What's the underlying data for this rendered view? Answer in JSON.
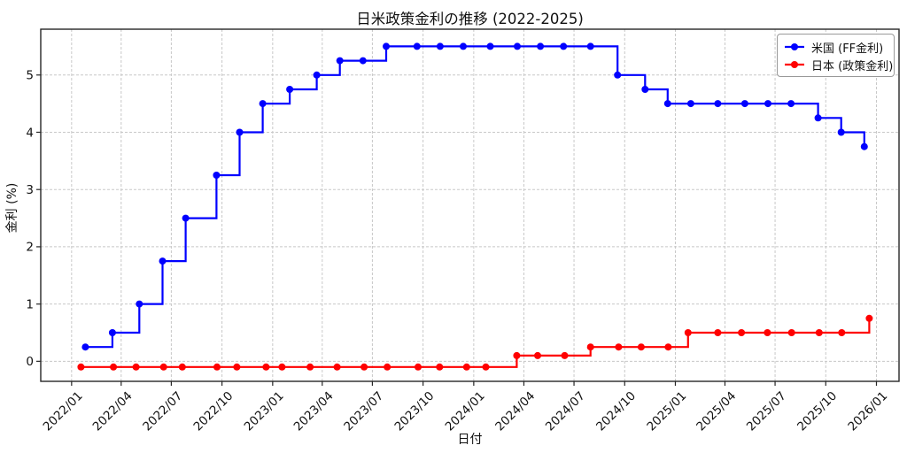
{
  "figure_title": "日米政策金利の推移 (2022-2025)",
  "chart_data": {
    "type": "line",
    "step": "post",
    "title": "日米政策金利の推移 (2022-2025)",
    "xlabel": "日付",
    "ylabel": "金利 (%)",
    "grid": true,
    "grid_style": "dashed",
    "legend_position": "upper right",
    "background_color": "#ffffff",
    "grid_color": "#c8c8c8",
    "spine_color": "#262626",
    "x_domain": [
      "2021-11-06",
      "2026-02-11"
    ],
    "ylim": [
      -0.35,
      5.8
    ],
    "y_ticks": [
      0,
      1,
      2,
      3,
      4,
      5
    ],
    "x_ticks": [
      "2022/01",
      "2022/04",
      "2022/07",
      "2022/10",
      "2023/01",
      "2023/04",
      "2023/07",
      "2023/10",
      "2024/01",
      "2024/04",
      "2024/07",
      "2024/10",
      "2025/01",
      "2025/04",
      "2025/07",
      "2025/10",
      "2026/01"
    ],
    "series": [
      {
        "id": "us",
        "name": "米国 (FF金利)",
        "color": "#0000ff",
        "x": [
          "2022-01-26",
          "2022-03-16",
          "2022-05-04",
          "2022-06-15",
          "2022-07-27",
          "2022-09-21",
          "2022-11-02",
          "2022-12-14",
          "2023-02-01",
          "2023-03-22",
          "2023-05-03",
          "2023-06-14",
          "2023-07-26",
          "2023-09-20",
          "2023-11-01",
          "2023-12-13",
          "2024-01-31",
          "2024-03-20",
          "2024-05-01",
          "2024-06-12",
          "2024-07-31",
          "2024-09-18",
          "2024-11-07",
          "2024-12-18",
          "2025-01-29",
          "2025-03-19",
          "2025-05-07",
          "2025-06-18",
          "2025-07-30",
          "2025-09-17",
          "2025-10-29",
          "2025-12-10"
        ],
        "y": [
          0.25,
          0.5,
          1.0,
          1.75,
          2.5,
          3.25,
          4.0,
          4.5,
          4.75,
          5.0,
          5.25,
          5.25,
          5.5,
          5.5,
          5.5,
          5.5,
          5.5,
          5.5,
          5.5,
          5.5,
          5.5,
          5.0,
          4.75,
          4.5,
          4.5,
          4.5,
          4.5,
          4.5,
          4.5,
          4.25,
          4.0,
          3.75
        ]
      },
      {
        "id": "japan",
        "name": "日本 (政策金利)",
        "color": "#ff0000",
        "x": [
          "2022-01-18",
          "2022-03-18",
          "2022-04-28",
          "2022-06-17",
          "2022-07-21",
          "2022-09-22",
          "2022-10-28",
          "2022-12-20",
          "2023-01-18",
          "2023-03-10",
          "2023-04-28",
          "2023-06-16",
          "2023-07-28",
          "2023-09-22",
          "2023-10-31",
          "2023-12-19",
          "2024-01-23",
          "2024-03-19",
          "2024-04-26",
          "2024-06-14",
          "2024-07-31",
          "2024-09-20",
          "2024-10-31",
          "2024-12-19",
          "2025-01-24",
          "2025-03-19",
          "2025-05-01",
          "2025-06-17",
          "2025-07-31",
          "2025-09-19",
          "2025-10-30",
          "2025-12-19"
        ],
        "y": [
          -0.1,
          -0.1,
          -0.1,
          -0.1,
          -0.1,
          -0.1,
          -0.1,
          -0.1,
          -0.1,
          -0.1,
          -0.1,
          -0.1,
          -0.1,
          -0.1,
          -0.1,
          -0.1,
          -0.1,
          0.1,
          0.1,
          0.1,
          0.25,
          0.25,
          0.25,
          0.25,
          0.5,
          0.5,
          0.5,
          0.5,
          0.5,
          0.5,
          0.5,
          0.75
        ]
      }
    ]
  }
}
